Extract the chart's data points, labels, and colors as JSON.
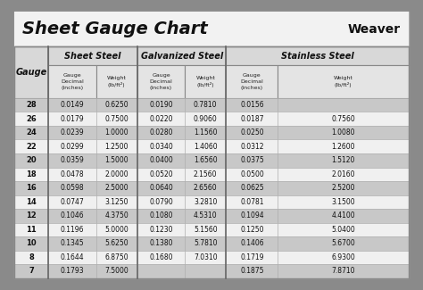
{
  "title": "Sheet Gauge Chart",
  "bg_outer": "#8a8a8a",
  "bg_white": "#ffffff",
  "bg_header_title": "#f0f0f0",
  "bg_header_section": "#d8d8d8",
  "bg_row_dark": "#c8c8c8",
  "bg_row_light": "#f0f0f0",
  "gauges": [
    28,
    26,
    24,
    22,
    20,
    18,
    16,
    14,
    12,
    11,
    10,
    8,
    7
  ],
  "sheet_steel": [
    [
      "0.0149",
      "0.6250"
    ],
    [
      "0.0179",
      "0.7500"
    ],
    [
      "0.0239",
      "1.0000"
    ],
    [
      "0.0299",
      "1.2500"
    ],
    [
      "0.0359",
      "1.5000"
    ],
    [
      "0.0478",
      "2.0000"
    ],
    [
      "0.0598",
      "2.5000"
    ],
    [
      "0.0747",
      "3.1250"
    ],
    [
      "0.1046",
      "4.3750"
    ],
    [
      "0.1196",
      "5.0000"
    ],
    [
      "0.1345",
      "5.6250"
    ],
    [
      "0.1644",
      "6.8750"
    ],
    [
      "0.1793",
      "7.5000"
    ]
  ],
  "galvanized_steel": [
    [
      "0.0190",
      "0.7810"
    ],
    [
      "0.0220",
      "0.9060"
    ],
    [
      "0.0280",
      "1.1560"
    ],
    [
      "0.0340",
      "1.4060"
    ],
    [
      "0.0400",
      "1.6560"
    ],
    [
      "0.0520",
      "2.1560"
    ],
    [
      "0.0640",
      "2.6560"
    ],
    [
      "0.0790",
      "3.2810"
    ],
    [
      "0.1080",
      "4.5310"
    ],
    [
      "0.1230",
      "5.1560"
    ],
    [
      "0.1380",
      "5.7810"
    ],
    [
      "0.1680",
      "7.0310"
    ],
    [
      "",
      ""
    ]
  ],
  "stainless_steel": [
    [
      "0.0156",
      ""
    ],
    [
      "0.0187",
      "0.7560"
    ],
    [
      "0.0250",
      "1.0080"
    ],
    [
      "0.0312",
      "1.2600"
    ],
    [
      "0.0375",
      "1.5120"
    ],
    [
      "0.0500",
      "2.0160"
    ],
    [
      "0.0625",
      "2.5200"
    ],
    [
      "0.0781",
      "3.1500"
    ],
    [
      "0.1094",
      "4.4100"
    ],
    [
      "0.1250",
      "5.0400"
    ],
    [
      "0.1406",
      "5.6700"
    ],
    [
      "0.1719",
      "6.9300"
    ],
    [
      "0.1875",
      "7.8710"
    ]
  ]
}
